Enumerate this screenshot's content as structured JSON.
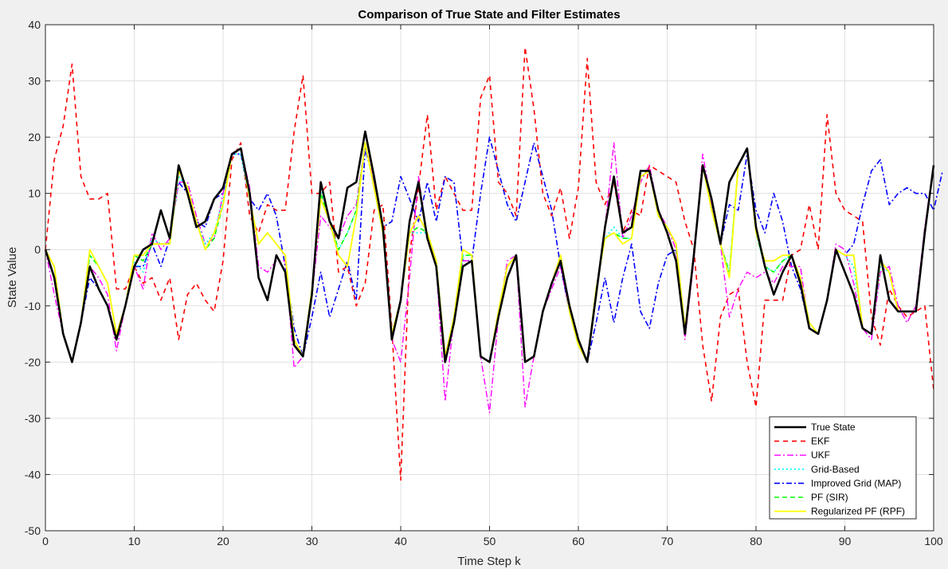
{
  "chart_data": {
    "type": "line",
    "title": "Comparison of True State and Filter Estimates",
    "xlabel": "Time Step k",
    "ylabel": "State Value",
    "xlim": [
      0,
      100
    ],
    "ylim": [
      -50,
      40
    ],
    "xticks": [
      "0",
      "10",
      "20",
      "30",
      "40",
      "50",
      "60",
      "70",
      "80",
      "90",
      "100"
    ],
    "yticks": [
      "40",
      "30",
      "20",
      "10",
      "0",
      "-10",
      "-20",
      "-30",
      "-40",
      "-50"
    ],
    "grid": true,
    "legend_position": "bottom-right",
    "series": [
      {
        "name": "True State",
        "color": "#000000",
        "dash": "none",
        "width": 2.6,
        "values": [
          0,
          -5,
          -15,
          -20,
          -13,
          -3,
          -7,
          -10,
          -16,
          -10,
          -3,
          0,
          1,
          7,
          2,
          15,
          10,
          4,
          5,
          9,
          11,
          17,
          18,
          10,
          -5,
          -9,
          -1,
          -4,
          -17,
          -19,
          -8,
          12,
          5,
          2,
          11,
          12,
          21,
          13,
          4,
          -16,
          -9,
          5,
          12,
          2,
          -3,
          -20,
          -13,
          -3,
          -2,
          -19,
          -20,
          -12,
          -5,
          -1,
          -20,
          -19,
          -11,
          -6,
          -2,
          -10,
          -16,
          -20,
          -8,
          4,
          13,
          3,
          4,
          14,
          14,
          7,
          3,
          -2,
          -15,
          -1,
          15,
          9,
          1,
          12,
          15,
          18,
          4,
          -3,
          -8,
          -4,
          -1,
          -6,
          -14,
          -15,
          -9,
          0,
          -4,
          -8,
          -14,
          -15,
          -1,
          -9,
          -11,
          -11,
          -11,
          3,
          15
        ]
      },
      {
        "name": "EKF",
        "color": "#ff0000",
        "dash": "6,5",
        "width": 1.6,
        "values": [
          0,
          16,
          22,
          33,
          13,
          9,
          9,
          10,
          -7,
          -7,
          -3,
          -6,
          -5,
          -9,
          -5,
          -16,
          -8,
          -6,
          -9,
          -11,
          -2,
          16,
          19,
          6,
          3,
          8,
          7,
          7,
          21,
          31,
          10,
          10,
          12,
          -4,
          -3,
          -10,
          -6,
          7,
          8,
          -14,
          -41,
          -1,
          11,
          24,
          7,
          13,
          10,
          7,
          7,
          27,
          31,
          12,
          10,
          6,
          36,
          25,
          10,
          6,
          11,
          2,
          11,
          34,
          12,
          8,
          12,
          3,
          7,
          6,
          15,
          14,
          13,
          12,
          5,
          0,
          -17,
          -27,
          -12,
          -8,
          -7,
          -20,
          -28,
          -9,
          -9,
          -9,
          -1,
          0,
          8,
          0,
          24,
          10,
          7,
          6,
          5,
          -12,
          -17,
          -7,
          -10,
          -12,
          -11,
          -10,
          -25
        ]
      },
      {
        "name": "UKF",
        "color": "#ff00ff",
        "dash": "8,3,2,3",
        "width": 1.4,
        "values": [
          0,
          -8,
          -15,
          -20,
          -13,
          -3,
          -5,
          -8,
          -18,
          -10,
          -3,
          -7,
          3,
          0,
          2,
          12,
          12,
          6,
          1,
          2,
          10,
          17,
          18,
          11,
          -3,
          -4,
          -2,
          -2,
          -21,
          -19,
          -8,
          6,
          4,
          2,
          6,
          8,
          19,
          12,
          4,
          -16,
          -20,
          -5,
          13,
          2,
          -3,
          -27,
          -12,
          -2,
          -2,
          -19,
          -29,
          -12,
          -2,
          -1,
          -28,
          -19,
          -11,
          -7,
          -3,
          -11,
          -17,
          -20,
          -8,
          4,
          19,
          2,
          6,
          12,
          15,
          7,
          4,
          0,
          -16,
          -2,
          17,
          8,
          1,
          -12,
          -7,
          -4,
          -5,
          -4,
          -6,
          -3,
          -3,
          -3,
          -14,
          -15,
          -9,
          1,
          0,
          -6,
          -14,
          -16,
          -4,
          -3,
          -10,
          -13,
          -10,
          4,
          15
        ]
      },
      {
        "name": "Grid-Based",
        "color": "#00ffff",
        "dash": "2,3",
        "width": 1.6,
        "values": [
          0,
          -3,
          -15,
          -20,
          -13,
          -1,
          -3,
          -6,
          -15,
          -10,
          -2,
          -4,
          2,
          1,
          1,
          13,
          11,
          5,
          1,
          3,
          9,
          17,
          17,
          9,
          1,
          3,
          1,
          -1,
          -16,
          -19,
          -7,
          11,
          5,
          0,
          3,
          7,
          19,
          11,
          3,
          -15,
          -9,
          3,
          3,
          3,
          -2,
          -19,
          -12,
          -1,
          -1,
          -19,
          -20,
          -11,
          -3,
          -1,
          -20,
          -19,
          -11,
          -6,
          -1,
          -11,
          -17,
          -20,
          -7,
          2,
          4,
          2,
          2,
          13,
          14,
          6,
          4,
          1,
          -14,
          -1,
          15,
          7,
          1,
          -4,
          15,
          18,
          3,
          -3,
          -4,
          -2,
          -1,
          -5,
          -13,
          -15,
          -9,
          0,
          -1,
          -3,
          -14,
          -15,
          -3,
          -4,
          -11,
          -11,
          -11,
          3,
          15
        ]
      },
      {
        "name": "Improved Grid (MAP)",
        "color": "#0000ff",
        "dash": "7,3,2,3",
        "width": 1.6,
        "values": [
          0,
          -5,
          -15,
          -20,
          -13,
          -5,
          -7,
          -10,
          -16,
          -10,
          -3,
          -3,
          1,
          -3,
          2,
          12,
          10,
          5,
          4,
          9,
          10,
          17,
          17,
          9,
          7,
          10,
          6,
          -3,
          -14,
          -19,
          -12,
          -4,
          -12,
          -7,
          -2,
          -9,
          18,
          12,
          4,
          5,
          13,
          9,
          5,
          12,
          5,
          13,
          12,
          -2,
          -2,
          10,
          20,
          14,
          8,
          5,
          12,
          19,
          13,
          7,
          -3,
          -11,
          -17,
          -20,
          -13,
          -5,
          -13,
          -5,
          1,
          -11,
          -14,
          -6,
          -1,
          0,
          -15,
          -1,
          15,
          8,
          1,
          8,
          7,
          17,
          7,
          3,
          10,
          5,
          -3,
          -7,
          -14,
          -15,
          -9,
          0,
          -1,
          1,
          8,
          14,
          16,
          8,
          10,
          11,
          10,
          10,
          7,
          14
        ]
      },
      {
        "name": "PF (SIR)",
        "color": "#00ff00",
        "dash": "6,4",
        "width": 1.6,
        "values": [
          0,
          -3,
          -15,
          -20,
          -13,
          -1,
          -3,
          -6,
          -15,
          -10,
          -1,
          -2,
          1,
          1,
          1,
          14,
          11,
          5,
          0,
          2,
          8,
          17,
          18,
          9,
          1,
          3,
          1,
          -1,
          -16,
          -19,
          -7,
          10,
          5,
          0,
          3,
          7,
          19,
          11,
          3,
          -15,
          -9,
          3,
          4,
          3,
          -2,
          -19,
          -12,
          -1,
          -1,
          -19,
          -20,
          -11,
          -3,
          -1,
          -20,
          -19,
          -11,
          -6,
          -1,
          -11,
          -17,
          -20,
          -7,
          2,
          3,
          2,
          2,
          13,
          14,
          6,
          4,
          1,
          -14,
          -1,
          15,
          7,
          1,
          -4,
          15,
          18,
          3,
          -3,
          -4,
          -2,
          -1,
          -5,
          -13,
          -15,
          -9,
          0,
          -1,
          -1,
          -14,
          -15,
          -2,
          -4,
          -11,
          -11,
          -11,
          3,
          15
        ]
      },
      {
        "name": "Regularized PF (RPF)",
        "color": "#ffff00",
        "dash": "none",
        "width": 1.8,
        "values": [
          0,
          -3,
          -15,
          -20,
          -13,
          0,
          -3,
          -6,
          -15,
          -10,
          -1,
          -1,
          1,
          1,
          1,
          14,
          11,
          5,
          0,
          3,
          8,
          17,
          18,
          9,
          1,
          3,
          1,
          -1,
          -16,
          -19,
          -7,
          9,
          5,
          -1,
          -3,
          6,
          19,
          11,
          3,
          -15,
          -9,
          3,
          6,
          3,
          -2,
          -19,
          -12,
          0,
          -1,
          -19,
          -20,
          -11,
          -3,
          -1,
          -20,
          -19,
          -11,
          -6,
          -1,
          -11,
          -17,
          -20,
          -7,
          2,
          3,
          1,
          2,
          13,
          14,
          6,
          4,
          1,
          -14,
          -1,
          15,
          7,
          1,
          -5,
          15,
          18,
          3,
          -2,
          -2,
          -1,
          -1,
          -5,
          -13,
          -15,
          -9,
          0,
          -1,
          -1,
          -14,
          -15,
          -2,
          -4,
          -11,
          -11,
          -11,
          3,
          15
        ]
      }
    ]
  }
}
